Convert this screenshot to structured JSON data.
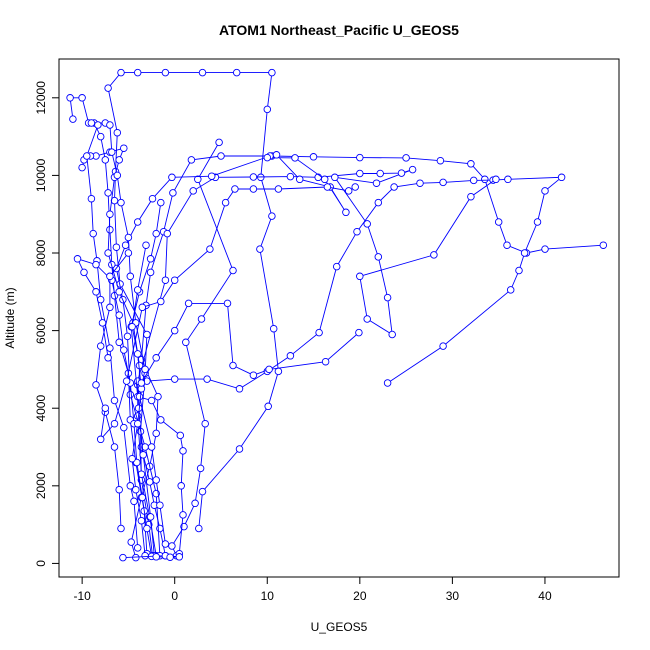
{
  "chart_data": {
    "type": "line",
    "title": "ATOM1 Northeast_Pacific U_GEOS5",
    "xlabel": "U_GEOS5",
    "ylabel": "Altitude (m)",
    "xlim": [
      -12.5,
      48
    ],
    "ylim": [
      -350,
      13000
    ],
    "x_ticks": [
      -10,
      0,
      10,
      20,
      30,
      40
    ],
    "y_ticks": [
      0,
      2000,
      4000,
      6000,
      8000,
      10000,
      12000
    ],
    "grid": false,
    "markers": "open-circle",
    "color": "#0000ff",
    "series": [
      {
        "values": [
          [
            0.2,
            200
          ],
          [
            -0.3,
            450
          ],
          [
            1.0,
            950
          ],
          [
            2.2,
            1550
          ],
          [
            2.8,
            2450
          ],
          [
            3.3,
            3600
          ],
          [
            1.2,
            5700
          ],
          [
            2.9,
            6300
          ],
          [
            6.3,
            7550
          ],
          [
            2.5,
            9900
          ],
          [
            4.8,
            10850
          ]
        ]
      },
      {
        "values": [
          [
            -4.2,
            150
          ],
          [
            -4.7,
            550
          ],
          [
            -3.6,
            1700
          ],
          [
            -2.7,
            2500
          ],
          [
            -2.0,
            3350
          ],
          [
            -1.8,
            4300
          ],
          [
            -3.6,
            5250
          ],
          [
            -3.1,
            6650
          ],
          [
            -2.6,
            7500
          ],
          [
            -1.2,
            8550
          ],
          [
            -0.2,
            9550
          ],
          [
            1.8,
            10400
          ],
          [
            5.0,
            10500
          ],
          [
            10.5,
            10500
          ],
          [
            15.0,
            10480
          ],
          [
            20.0,
            10460
          ],
          [
            25.0,
            10450
          ],
          [
            28.7,
            10380
          ],
          [
            32.0,
            10300
          ],
          [
            33.5,
            9900
          ],
          [
            35.0,
            8800
          ],
          [
            35.9,
            8200
          ],
          [
            38.0,
            8000
          ],
          [
            40.0,
            8100
          ],
          [
            46.3,
            8200
          ]
        ]
      },
      {
        "values": [
          [
            -1.0,
            200
          ],
          [
            -1.6,
            900
          ],
          [
            -2.2,
            1500
          ],
          [
            -2.7,
            2100
          ],
          [
            -3.6,
            3000
          ],
          [
            -4.0,
            4600
          ],
          [
            -3.0,
            4700
          ],
          [
            0.0,
            4750
          ],
          [
            3.5,
            4750
          ],
          [
            7.0,
            4500
          ],
          [
            10.0,
            4950
          ],
          [
            12.5,
            5350
          ],
          [
            15.6,
            5950
          ],
          [
            17.5,
            7650
          ],
          [
            19.7,
            8550
          ],
          [
            22.0,
            9300
          ],
          [
            23.7,
            9700
          ],
          [
            26.5,
            9800
          ],
          [
            29.0,
            9820
          ],
          [
            32.3,
            9870
          ],
          [
            34.4,
            9880
          ],
          [
            36.0,
            9900
          ],
          [
            41.8,
            9950
          ],
          [
            40.0,
            9600
          ],
          [
            39.2,
            8800
          ],
          [
            37.8,
            8000
          ],
          [
            37.2,
            7550
          ],
          [
            36.3,
            7050
          ],
          [
            29.0,
            5600
          ],
          [
            23.0,
            4650
          ]
        ]
      },
      {
        "values": [
          [
            -2.4,
            200
          ],
          [
            -2.8,
            1000
          ],
          [
            -3.6,
            2150
          ],
          [
            -3.7,
            3400
          ],
          [
            -3.2,
            4900
          ],
          [
            -3.0,
            5900
          ],
          [
            -5.9,
            7200
          ],
          [
            -6.3,
            8150
          ],
          [
            -6.5,
            9350
          ],
          [
            -6.4,
            10100
          ],
          [
            -6.2,
            11100
          ],
          [
            -7.2,
            12250
          ],
          [
            -5.8,
            12650
          ],
          [
            -4.0,
            12650
          ],
          [
            -1.0,
            12650
          ],
          [
            3.0,
            12650
          ],
          [
            6.7,
            12650
          ],
          [
            10.5,
            12650
          ],
          [
            10.0,
            11700
          ],
          [
            9.3,
            9950
          ],
          [
            10.5,
            8950
          ],
          [
            9.2,
            8100
          ],
          [
            10.7,
            6050
          ],
          [
            11.2,
            4950
          ],
          [
            10.1,
            4050
          ],
          [
            7.0,
            2950
          ],
          [
            3.0,
            1850
          ],
          [
            2.6,
            900
          ]
        ]
      },
      {
        "values": [
          [
            -2.0,
            200
          ],
          [
            -2.7,
            1200
          ],
          [
            -3.6,
            2300
          ],
          [
            -4.0,
            3800
          ],
          [
            -4.0,
            4700
          ],
          [
            -1.0,
            7300
          ],
          [
            -0.8,
            8500
          ],
          [
            2.0,
            9600
          ],
          [
            4.4,
            9950
          ],
          [
            8.5,
            9960
          ],
          [
            12.5,
            9970
          ],
          [
            15.5,
            9950
          ],
          [
            20.0,
            10050
          ],
          [
            22.2,
            10050
          ],
          [
            24.5,
            10060
          ],
          [
            25.7,
            10150
          ],
          [
            21.8,
            9800
          ],
          [
            17.3,
            9950
          ],
          [
            20.8,
            8750
          ],
          [
            22.0,
            7900
          ],
          [
            23.0,
            6850
          ],
          [
            23.5,
            5900
          ],
          [
            20.8,
            6300
          ],
          [
            20.0,
            7400
          ],
          [
            28.0,
            7950
          ],
          [
            32.0,
            9450
          ],
          [
            34.7,
            9900
          ]
        ]
      },
      {
        "values": [
          [
            -1.6,
            200
          ],
          [
            -2.0,
            1800
          ],
          [
            -3.2,
            3000
          ],
          [
            -4.8,
            4350
          ],
          [
            -5.1,
            5850
          ],
          [
            -5.6,
            6800
          ],
          [
            -6.3,
            7600
          ],
          [
            -5.3,
            8200
          ],
          [
            -4.0,
            8800
          ],
          [
            -2.4,
            9400
          ],
          [
            -0.3,
            9950
          ],
          [
            4.0,
            9980
          ],
          [
            10.3,
            10500
          ],
          [
            11.0,
            10530
          ],
          [
            13.5,
            9900
          ],
          [
            16.8,
            9700
          ],
          [
            18.5,
            9050
          ],
          [
            16.2,
            9900
          ],
          [
            13.0,
            10450
          ],
          [
            10.0,
            10460
          ]
        ]
      },
      {
        "values": [
          [
            -3.0,
            250
          ],
          [
            -3.3,
            1350
          ],
          [
            -4.2,
            2600
          ],
          [
            -4.8,
            3700
          ],
          [
            -5.0,
            4900
          ],
          [
            -6.0,
            5700
          ],
          [
            -6.5,
            6900
          ],
          [
            -6.8,
            7700
          ],
          [
            -7.0,
            8600
          ],
          [
            -7.2,
            9550
          ],
          [
            -7.5,
            10400
          ],
          [
            -8.0,
            11000
          ],
          [
            -8.7,
            11350
          ],
          [
            -9.3,
            11350
          ],
          [
            -10.0,
            12000
          ],
          [
            -11.3,
            12000
          ],
          [
            -11.0,
            11450
          ]
        ]
      },
      {
        "values": [
          [
            -2.2,
            200
          ],
          [
            -2.6,
            1200
          ],
          [
            -3.4,
            2800
          ],
          [
            -3.9,
            4000
          ],
          [
            -3.8,
            5100
          ],
          [
            -4.5,
            6200
          ],
          [
            -6.0,
            7000
          ],
          [
            -7.2,
            8000
          ],
          [
            -7.0,
            9000
          ],
          [
            -6.5,
            9950
          ],
          [
            -6.0,
            10400
          ],
          [
            -5.5,
            10700
          ],
          [
            -7.0,
            10600
          ],
          [
            -8.5,
            10500
          ],
          [
            -9.1,
            10500
          ],
          [
            -9.8,
            10400
          ],
          [
            -10.0,
            10200
          ]
        ]
      },
      {
        "values": [
          [
            -4.0,
            400
          ],
          [
            -4.4,
            1600
          ],
          [
            -4.8,
            2000
          ],
          [
            -5.5,
            3500
          ],
          [
            -6.5,
            4200
          ],
          [
            -7.0,
            5550
          ],
          [
            -8.0,
            6800
          ],
          [
            -8.4,
            7800
          ],
          [
            -8.8,
            8500
          ],
          [
            -9.0,
            9400
          ],
          [
            -9.5,
            10500
          ],
          [
            -8.3,
            11300
          ],
          [
            -9.0,
            11350
          ],
          [
            -7.5,
            11350
          ]
        ]
      },
      {
        "values": [
          [
            0.5,
            250
          ],
          [
            0.9,
            1250
          ],
          [
            0.7,
            2000
          ],
          [
            0.9,
            2900
          ],
          [
            0.6,
            3300
          ],
          [
            -1.5,
            3700
          ],
          [
            -2.5,
            4200
          ],
          [
            -4.0,
            4300
          ],
          [
            -4.7,
            6100
          ],
          [
            -3.8,
            7000
          ],
          [
            -2.6,
            7850
          ],
          [
            -2.0,
            8500
          ],
          [
            -1.5,
            9300
          ]
        ]
      },
      {
        "values": [
          [
            -1.0,
            500
          ],
          [
            -1.6,
            1500
          ],
          [
            -2.0,
            2150
          ],
          [
            -2.5,
            3000
          ],
          [
            -3.8,
            4300
          ],
          [
            -3.2,
            5000
          ],
          [
            -4.2,
            6200
          ],
          [
            -4.8,
            7400
          ],
          [
            -5.0,
            8400
          ],
          [
            -5.8,
            9300
          ],
          [
            -6.2,
            10000
          ],
          [
            -6.8,
            10600
          ],
          [
            -7.0,
            11300
          ]
        ]
      },
      {
        "values": [
          [
            -2.5,
            180
          ],
          [
            -3.0,
            900
          ],
          [
            -3.5,
            1700
          ],
          [
            -4.1,
            2600
          ],
          [
            -4.4,
            3600
          ],
          [
            -4.8,
            4650
          ],
          [
            -5.5,
            5500
          ],
          [
            -6.0,
            6400
          ],
          [
            -6.8,
            7300
          ],
          [
            -8.5,
            7700
          ],
          [
            -10.5,
            7850
          ],
          [
            -9.8,
            7500
          ],
          [
            -8.5,
            7000
          ],
          [
            -7.8,
            6200
          ],
          [
            -7.2,
            5300
          ]
        ]
      },
      {
        "values": [
          [
            -3.2,
            200
          ],
          [
            -3.6,
            1100
          ],
          [
            -4.2,
            1900
          ],
          [
            -4.6,
            2700
          ],
          [
            -4.0,
            3600
          ],
          [
            -3.6,
            4500
          ],
          [
            -4.0,
            5400
          ],
          [
            -4.6,
            6100
          ],
          [
            -4.0,
            7050
          ],
          [
            -3.1,
            8200
          ]
        ]
      },
      {
        "values": [
          [
            -5.8,
            900
          ],
          [
            -6.0,
            1900
          ],
          [
            -6.5,
            3000
          ],
          [
            -7.5,
            3900
          ],
          [
            -8.5,
            4600
          ],
          [
            -8.0,
            5600
          ],
          [
            -7.0,
            6600
          ],
          [
            -7.0,
            7400
          ],
          [
            -5.0,
            8000
          ]
        ]
      },
      {
        "values": [
          [
            -7.5,
            4000
          ],
          [
            -8.0,
            3200
          ],
          [
            -6.5,
            3600
          ],
          [
            -5.2,
            4700
          ],
          [
            -3.5,
            6600
          ],
          [
            -1.5,
            6750
          ],
          [
            0.0,
            7300
          ],
          [
            3.8,
            8100
          ],
          [
            5.5,
            9300
          ],
          [
            6.5,
            9650
          ],
          [
            8.5,
            9650
          ],
          [
            11.2,
            9650
          ],
          [
            16.5,
            9700
          ],
          [
            18.8,
            9600
          ],
          [
            19.5,
            9700
          ]
        ]
      },
      {
        "values": [
          [
            -3.6,
            4650
          ],
          [
            -2.0,
            5300
          ],
          [
            0.0,
            6000
          ],
          [
            1.5,
            6700
          ],
          [
            5.7,
            6700
          ],
          [
            6.3,
            5100
          ],
          [
            8.5,
            4850
          ],
          [
            10.2,
            5000
          ],
          [
            16.3,
            5200
          ],
          [
            19.9,
            5950
          ]
        ]
      },
      {
        "values": [
          [
            -5.6,
            150
          ],
          [
            -1.0,
            200
          ],
          [
            0.5,
            170
          ],
          [
            -0.5,
            160
          ],
          [
            -2.0,
            170
          ]
        ]
      }
    ]
  }
}
